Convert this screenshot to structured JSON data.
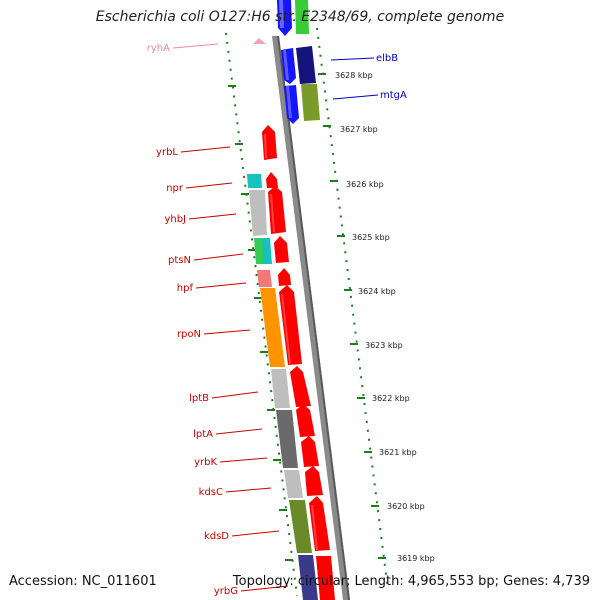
{
  "header": {
    "title": "Escherichia coli O127:H6 str. E2348/69, complete genome"
  },
  "footer": {
    "accession": "Accession: NC_011601",
    "topology": "Topology: circular; Length: 4,965,553 bp; Genes: 4,739"
  },
  "colors": {
    "backbone": "#8a8a8a",
    "tick": "#1b7d1b",
    "gene_red": "#ff0000",
    "gene_blue": "#1515ff",
    "gene_navy": "#14147a",
    "label_red": "#cc0000",
    "label_blue": "#0000cc",
    "label_pink": "#e58aa8"
  },
  "ruler": {
    "labels": [
      "3628 kbp",
      "3627 kbp",
      "3626 kbp",
      "3625 kbp",
      "3624 kbp",
      "3623 kbp",
      "3622 kbp",
      "3621 kbp",
      "3620 kbp",
      "3619 kbp"
    ]
  },
  "gene_labels": {
    "ryhA": "ryhA",
    "elbB": "elbB",
    "mtgA": "mtgA",
    "yrbL": "yrbL",
    "npr": "npr",
    "yhbJ": "yhbJ",
    "ptsN": "ptsN",
    "hpf": "hpf",
    "rpoN": "rpoN",
    "lptB": "lptB",
    "lptA": "lptA",
    "yrbK": "yrbK",
    "kdsC": "kdsC",
    "kdsD": "kdsD",
    "yrbG": "yrbG"
  }
}
